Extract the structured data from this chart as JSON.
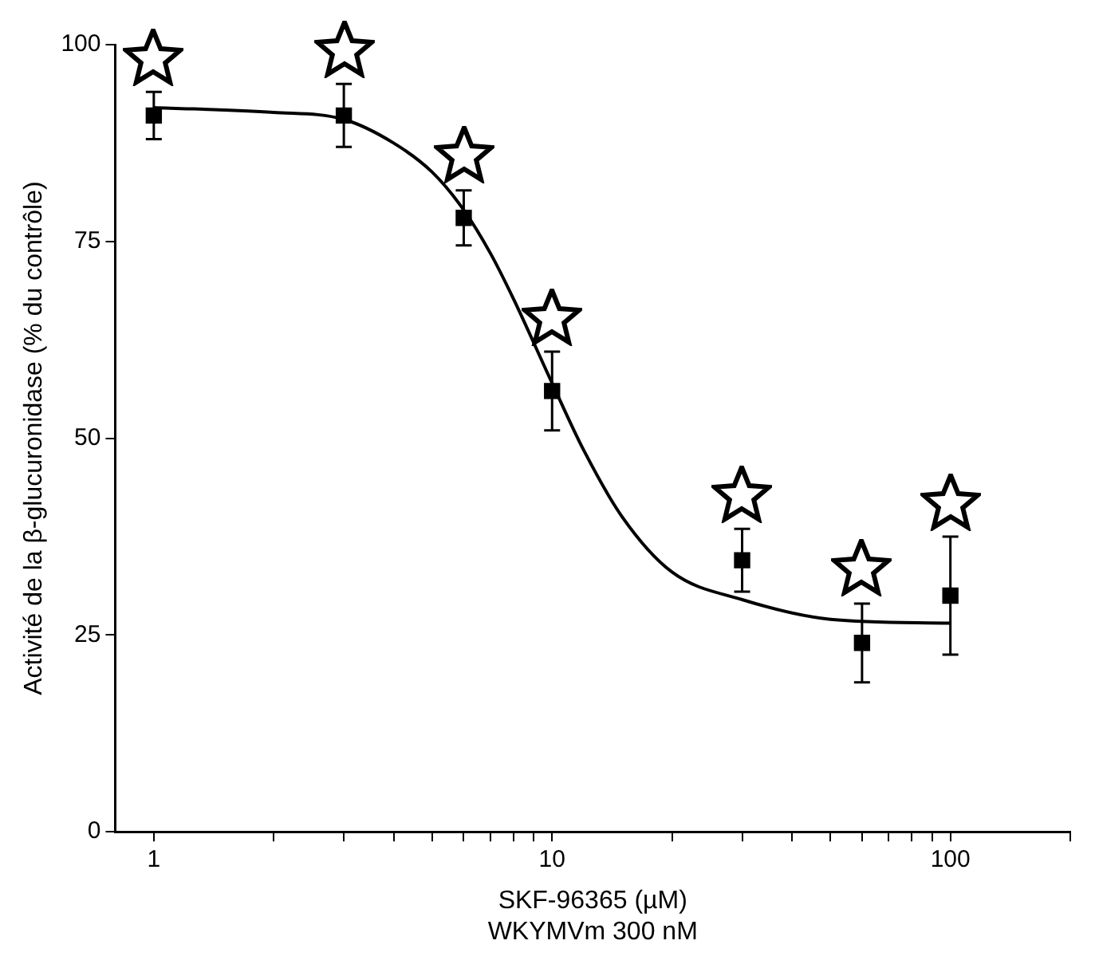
{
  "chart_data": {
    "type": "scatter",
    "xlabel": "SKF-96365 (µM)\nWKYMVm 300 nM",
    "ylabel": "Activité de la β-glucuronidase (% du contrôle)",
    "log": "x",
    "xlim": [
      0.8,
      200
    ],
    "ylim": [
      0,
      100
    ],
    "xticks": [
      1,
      {
        "value": 2,
        "label": null
      },
      {
        "value": 3,
        "label": null
      },
      {
        "value": 4,
        "label": null
      },
      {
        "value": 5,
        "label": null
      },
      {
        "value": 6,
        "label": null
      },
      {
        "value": 7,
        "label": null
      },
      {
        "value": 8,
        "label": null
      },
      {
        "value": 9,
        "label": null
      },
      10,
      {
        "value": 20,
        "label": null
      },
      {
        "value": 30,
        "label": null
      },
      {
        "value": 40,
        "label": null
      },
      {
        "value": 50,
        "label": null
      },
      {
        "value": 60,
        "label": null
      },
      {
        "value": 70,
        "label": null
      },
      {
        "value": 80,
        "label": null
      },
      {
        "value": 90,
        "label": null
      },
      100,
      {
        "value": 200,
        "label": null
      }
    ],
    "yticks": [
      0,
      25,
      50,
      75,
      100
    ],
    "grid": false,
    "legend": false,
    "marker": "square",
    "series": [
      {
        "color": "#000000",
        "x": [
          1,
          3,
          6,
          10,
          30,
          60,
          100
        ],
        "values": [
          91,
          91,
          78,
          56,
          34.5,
          24,
          30
        ],
        "errors": [
          3,
          4,
          3.5,
          5,
          4,
          5,
          7.5
        ]
      },
      {
        "type": "line",
        "color": "#000000",
        "marker": "none",
        "x": [
          1,
          2,
          3,
          4,
          5,
          6,
          7,
          8,
          10,
          12,
          15,
          20,
          30,
          50,
          100
        ],
        "values": [
          92,
          91.4,
          90.5,
          87.5,
          83.8,
          79,
          73.5,
          67.7,
          57,
          48.5,
          40,
          33,
          29.5,
          27,
          26.5
        ]
      }
    ]
  }
}
